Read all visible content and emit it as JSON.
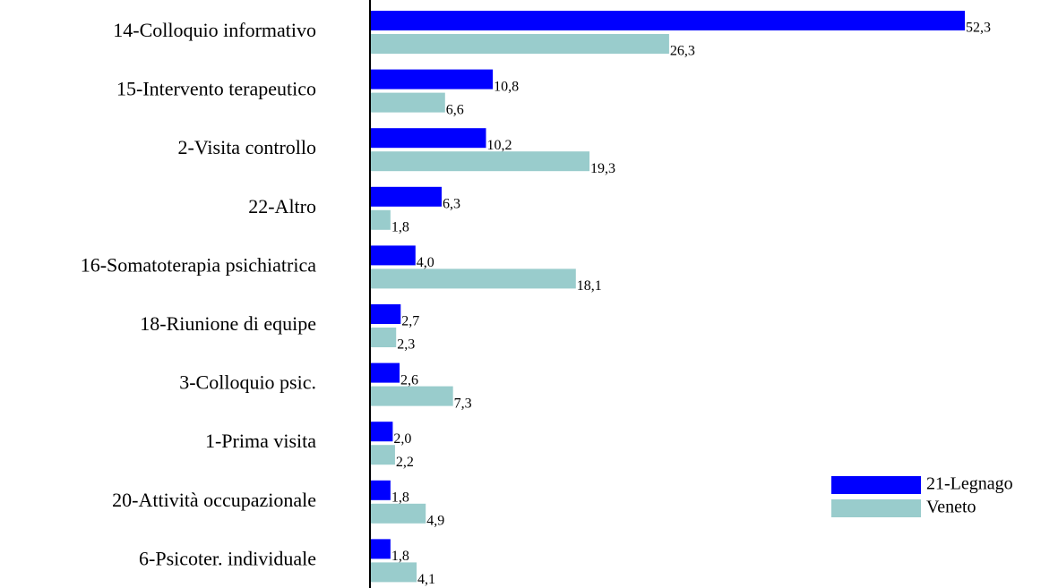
{
  "chart_data": {
    "type": "bar",
    "orientation": "horizontal",
    "categories": [
      "14-Colloquio informativo",
      "15-Intervento terapeutico",
      "2-Visita controllo",
      "22-Altro",
      "16-Somatoterapia psichiatrica",
      "18-Riunione di equipe",
      "3-Colloquio psic.",
      "1-Prima visita",
      "20-Attività occupazionale",
      "6-Psicoter. individuale"
    ],
    "series": [
      {
        "name": "21-Legnago",
        "color": "#0000ff",
        "values": [
          52.3,
          10.8,
          10.2,
          6.3,
          4.0,
          2.7,
          2.6,
          2.0,
          1.8,
          1.8
        ],
        "value_labels": [
          "52,3",
          "10,8",
          "10,2",
          "6,3",
          "4,0",
          "2,7",
          "2,6",
          "2,0",
          "1,8",
          "1,8"
        ]
      },
      {
        "name": "Veneto",
        "color": "#99cccc",
        "values": [
          26.3,
          6.6,
          19.3,
          1.8,
          18.1,
          2.3,
          7.3,
          2.2,
          4.9,
          4.1
        ],
        "value_labels": [
          "26,3",
          "6,6",
          "19,3",
          "1,8",
          "18,1",
          "2,3",
          "7,3",
          "2,2",
          "4,9",
          "4,1"
        ]
      }
    ],
    "legend": "lower-right"
  }
}
